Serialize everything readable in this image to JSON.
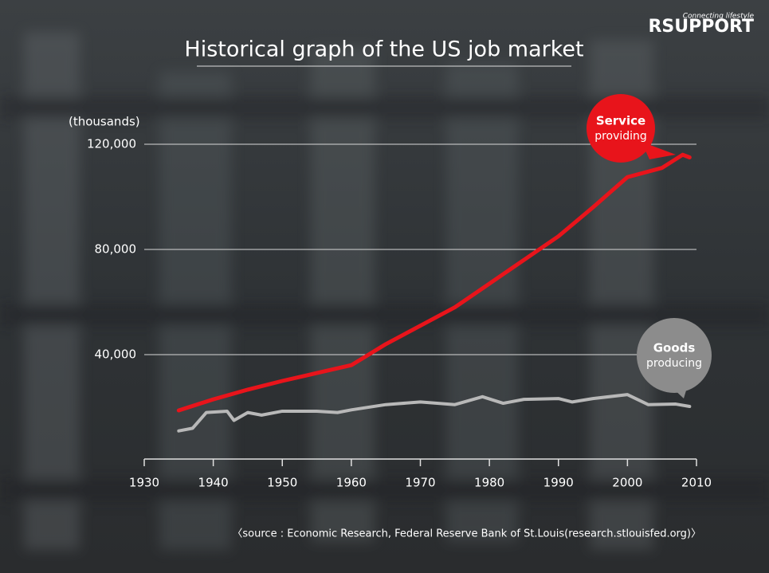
{
  "chart_data": {
    "type": "line",
    "title": "Historical graph of the US job market",
    "y_unit": "(thousands)",
    "source": "〈source : Economic Research, Federal Reserve Bank of St.Louis(research.stlouisfed.org)〉",
    "xlim": [
      1930,
      2010
    ],
    "xticks": [
      1930,
      1940,
      1950,
      1960,
      1970,
      1980,
      1990,
      2000,
      2010
    ],
    "ylim": [
      0,
      120000
    ],
    "yticks": [
      {
        "value": 40000,
        "label": "40,000"
      },
      {
        "value": 80000,
        "label": "80,000"
      },
      {
        "value": 120000,
        "label": "120,000"
      }
    ],
    "grid": true,
    "series": [
      {
        "name": "Service",
        "subname": "providing",
        "color": "#e8141b",
        "x": [
          1935,
          1940,
          1945,
          1950,
          1955,
          1960,
          1965,
          1970,
          1975,
          1980,
          1985,
          1990,
          1995,
          2000,
          2005,
          2008,
          2009
        ],
        "values": [
          18800,
          23000,
          26700,
          30000,
          33000,
          36000,
          44000,
          51000,
          58000,
          67000,
          76000,
          85000,
          96000,
          107500,
          111000,
          116000,
          115000
        ]
      },
      {
        "name": "Goods",
        "subname": "producing",
        "color": "#b8b8b8",
        "x": [
          1935,
          1937,
          1939,
          1942,
          1943,
          1945,
          1947,
          1950,
          1955,
          1958,
          1960,
          1965,
          1970,
          1975,
          1979,
          1982,
          1985,
          1990,
          1992,
          1995,
          2000,
          2003,
          2007,
          2009
        ],
        "values": [
          11000,
          12000,
          18000,
          18500,
          15000,
          18000,
          17000,
          18500,
          18500,
          18000,
          19000,
          21000,
          22000,
          21000,
          24000,
          21500,
          23000,
          23300,
          22000,
          23300,
          24800,
          21000,
          21200,
          20300
        ]
      }
    ]
  },
  "logo": {
    "brand": "RSUPPORT",
    "tagline": "Connecting lifestyle"
  }
}
